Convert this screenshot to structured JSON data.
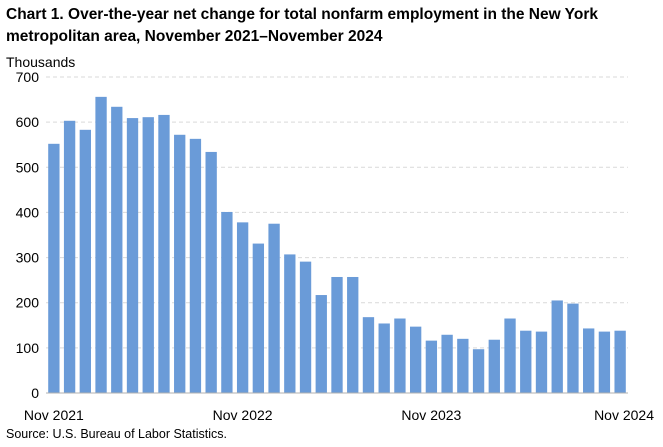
{
  "chart_data": {
    "type": "bar",
    "title": "Chart 1. Over-the-year net change for total nonfarm employment in the New York metropolitan area, November 2021–November 2024",
    "ylabel": "Thousands",
    "xlabel": "",
    "ylim": [
      0,
      700
    ],
    "y_ticks": [
      "0",
      "100",
      "200",
      "300",
      "400",
      "500",
      "600",
      "700"
    ],
    "grid": "horizontal dashed",
    "bar_color": "#6a9bd8",
    "x_tick_labels": [
      "Nov 2021",
      "Nov 2022",
      "Nov 2023",
      "Nov 2024"
    ],
    "categories": [
      "Nov 2021",
      "Dec 2021",
      "Jan 2022",
      "Feb 2022",
      "Mar 2022",
      "Apr 2022",
      "May 2022",
      "Jun 2022",
      "Jul 2022",
      "Aug 2022",
      "Sep 2022",
      "Oct 2022",
      "Nov 2022",
      "Dec 2022",
      "Jan 2023",
      "Feb 2023",
      "Mar 2023",
      "Apr 2023",
      "May 2023",
      "Jun 2023",
      "Jul 2023",
      "Aug 2023",
      "Sep 2023",
      "Oct 2023",
      "Nov 2023",
      "Dec 2023",
      "Jan 2024",
      "Feb 2024",
      "Mar 2024",
      "Apr 2024",
      "May 2024",
      "Jun 2024",
      "Jul 2024",
      "Aug 2024",
      "Sep 2024",
      "Oct 2024",
      "Nov 2024"
    ],
    "values": [
      552,
      603,
      583,
      656,
      634,
      609,
      611,
      616,
      572,
      563,
      534,
      401,
      378,
      331,
      375,
      307,
      291,
      217,
      257,
      257,
      168,
      154,
      165,
      147,
      116,
      129,
      120,
      97,
      118,
      165,
      138,
      136,
      205,
      198,
      143,
      136,
      138
    ]
  },
  "source": "Source: U.S. Bureau of Labor Statistics."
}
